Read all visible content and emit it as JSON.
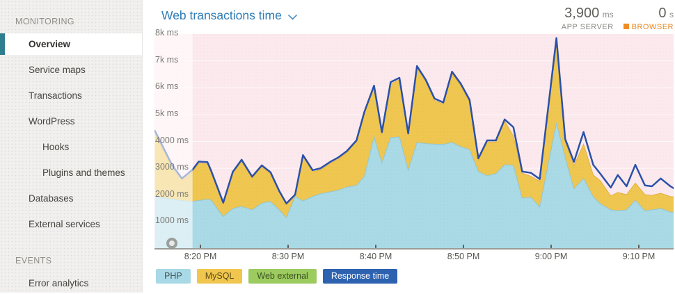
{
  "sidebar": {
    "sections": [
      {
        "label": "MONITORING",
        "items": [
          {
            "label": "Overview",
            "active": true
          },
          {
            "label": "Service maps"
          },
          {
            "label": "Transactions"
          },
          {
            "label": "WordPress"
          },
          {
            "label": "Hooks",
            "indent": true
          },
          {
            "label": "Plugins and themes",
            "indent": true
          },
          {
            "label": "Databases"
          },
          {
            "label": "External services"
          }
        ]
      },
      {
        "label": "EVENTS",
        "items": [
          {
            "label": "Error analytics"
          }
        ]
      }
    ]
  },
  "header": {
    "title": "Web transactions time"
  },
  "stats": {
    "app_server": {
      "value": "3,900",
      "unit": "ms",
      "label": "APP SERVER"
    },
    "browser": {
      "value": "0",
      "unit": "s",
      "label": "BROWSER",
      "color": "#e5861e"
    }
  },
  "chart_data": {
    "type": "area",
    "title": "Web transactions time",
    "ylabel": "ms",
    "ylim": [
      0,
      8000
    ],
    "grid": true,
    "legend_position": "bottom",
    "y_ticks": [
      {
        "v": 1000,
        "label": "1000 ms"
      },
      {
        "v": 2000,
        "label": "2000 ms"
      },
      {
        "v": 3000,
        "label": "3000 ms"
      },
      {
        "v": 4000,
        "label": "4000 ms"
      },
      {
        "v": 5000,
        "label": "5k ms"
      },
      {
        "v": 6000,
        "label": "6k ms"
      },
      {
        "v": 7000,
        "label": "7k ms"
      },
      {
        "v": 8000,
        "label": "8k ms"
      }
    ],
    "x_unit": "minutes after 8:00 PM",
    "x_ticks": [
      {
        "t": 20,
        "label": "8:20 PM"
      },
      {
        "t": 30,
        "label": "8:30 PM"
      },
      {
        "t": 40,
        "label": "8:40 PM"
      },
      {
        "t": 50,
        "label": "8:50 PM"
      },
      {
        "t": 60,
        "label": "9:00 PM"
      },
      {
        "t": 70,
        "label": "9:10 PM"
      }
    ],
    "faded_before_t": 19.1,
    "series": {
      "t": [
        14.8,
        15.8,
        16.8,
        17.9,
        19.1,
        19.8,
        20.8,
        21.2,
        22.6,
        23.7,
        24.7,
        25.9,
        27.0,
        28.0,
        29.0,
        29.8,
        30.8,
        31.7,
        32.8,
        33.7,
        34.8,
        35.7,
        36.7,
        37.8,
        38.7,
        39.8,
        40.7,
        41.7,
        42.7,
        43.7,
        44.7,
        45.7,
        46.7,
        47.7,
        48.7,
        49.7,
        50.7,
        51.7,
        52.7,
        53.7,
        54.7,
        55.7,
        56.7,
        57.7,
        58.7,
        60.6,
        61.6,
        62.6,
        63.7,
        64.8,
        65.6,
        66.8,
        67.6,
        68.6,
        69.6,
        70.7,
        71.5,
        72.5,
        73.6,
        74.0
      ],
      "response_time": [
        4400,
        3750,
        3100,
        2620,
        2950,
        3250,
        3230,
        2930,
        1720,
        2870,
        3320,
        2690,
        3110,
        2850,
        2150,
        1690,
        2020,
        3490,
        2930,
        3000,
        3240,
        3400,
        3640,
        4040,
        5100,
        6080,
        4350,
        6210,
        6370,
        4300,
        6810,
        6300,
        5600,
        5450,
        6600,
        6150,
        5550,
        3370,
        4040,
        4040,
        4820,
        4530,
        2880,
        2830,
        2600,
        7850,
        4090,
        3240,
        4350,
        3130,
        2800,
        2280,
        2750,
        2330,
        3130,
        2360,
        2330,
        2620,
        2330,
        2250
      ],
      "php_top": [
        1950,
        1900,
        1850,
        1800,
        1760,
        1800,
        1840,
        1820,
        1200,
        1500,
        1580,
        1450,
        1700,
        1760,
        1450,
        1160,
        1950,
        1780,
        1950,
        2050,
        2120,
        2180,
        2300,
        2360,
        2700,
        4170,
        3200,
        4140,
        4170,
        2930,
        3960,
        3920,
        3900,
        3890,
        3960,
        3800,
        3700,
        2880,
        2720,
        2800,
        3130,
        3110,
        1890,
        1920,
        1550,
        4690,
        3400,
        2230,
        2620,
        1940,
        1680,
        1450,
        1420,
        1450,
        1810,
        1420,
        1450,
        1500,
        1370,
        1370
      ],
      "mysql_top": [
        4300,
        3650,
        3000,
        2550,
        2880,
        3180,
        3160,
        2870,
        1680,
        2820,
        3260,
        2640,
        3050,
        2790,
        2100,
        1650,
        1960,
        3430,
        2870,
        2940,
        3180,
        3340,
        3580,
        3980,
        5040,
        6010,
        4290,
        6140,
        6300,
        4240,
        6740,
        6230,
        5530,
        5390,
        6530,
        6080,
        5480,
        3310,
        3980,
        3980,
        4760,
        4200,
        2820,
        2700,
        2520,
        7800,
        4000,
        3100,
        3900,
        2750,
        2540,
        1970,
        2100,
        2020,
        2450,
        2020,
        1990,
        2070,
        1950,
        1940
      ]
    },
    "legend": [
      {
        "label": "PHP",
        "color": "#a9d9e6",
        "text": "#45555b"
      },
      {
        "label": "MySQL",
        "color": "#f0c64f",
        "text": "#5c4c16"
      },
      {
        "label": "Web external",
        "color": "#9ccb60",
        "text": "#3e5120"
      },
      {
        "label": "Response time",
        "color": "#2d62b0",
        "text": "#ffffff"
      }
    ],
    "colors": {
      "php": "#a9dae6",
      "php_edge": "#8ec4d3",
      "mysql": "#efc650",
      "mysql_edge": "#dca82e",
      "response_line": "#2b51a8",
      "plot_bg": "#fce9ed",
      "grid": "rgba(255,255,255,0.7)"
    }
  }
}
